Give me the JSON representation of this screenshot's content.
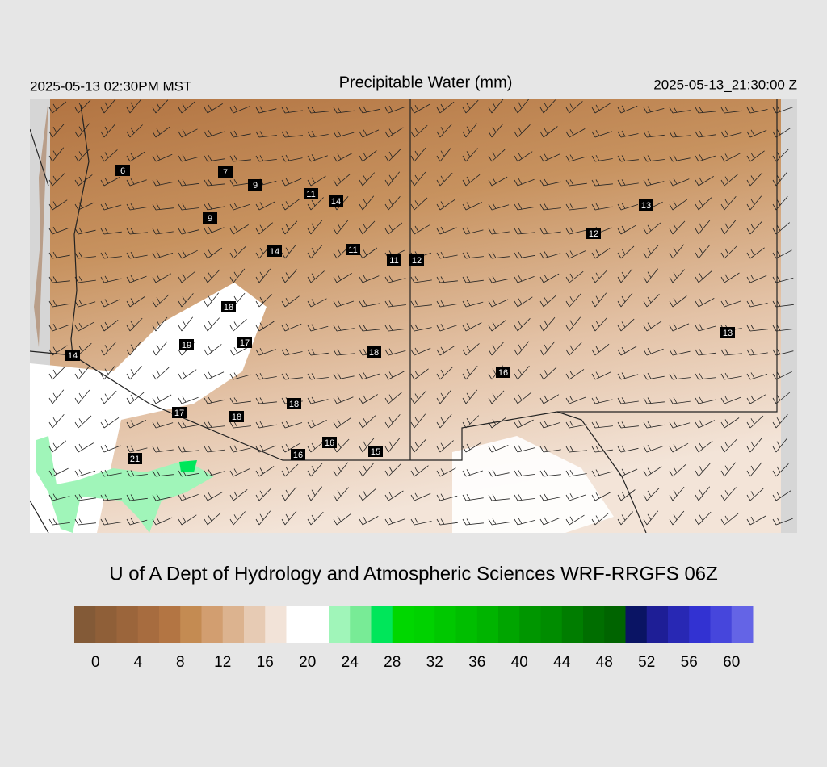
{
  "header": {
    "left": "2025-05-13 02:30PM MST",
    "title": "Precipitable Water (mm)",
    "right": "2025-05-13_21:30:00 Z"
  },
  "stations": [
    6,
    7,
    9,
    11,
    14,
    9,
    13,
    12,
    14,
    11,
    11,
    12,
    18,
    13,
    19,
    17,
    14,
    18,
    16,
    18,
    17,
    18,
    16,
    15,
    21,
    16
  ],
  "credit": "U of A Dept of Hydrology and Atmospheric Sciences WRF-RRGFS 06Z",
  "colorbar": {
    "clim": [
      -2,
      62
    ],
    "colors": [
      "#835a37",
      "#8f5f38",
      "#9b653b",
      "#a76c3f",
      "#b37543",
      "#c48b52",
      "#d29e70",
      "#dcb38f",
      "#e7cbb4",
      "#f2e3d8",
      "#ffffff",
      "#ffffff",
      "#a0f5b9",
      "#78eb96",
      "#00e65a",
      "#00d700",
      "#00d200",
      "#00c800",
      "#00be00",
      "#00b400",
      "#00a500",
      "#009600",
      "#008c00",
      "#007d00",
      "#006e00",
      "#006400",
      "#0a1464",
      "#1e1e96",
      "#2828b4",
      "#3232d2",
      "#4646dc",
      "#6464e6"
    ],
    "ticks": [
      0,
      4,
      8,
      12,
      16,
      20,
      24,
      28,
      32,
      36,
      40,
      44,
      48,
      52,
      56,
      60
    ]
  }
}
